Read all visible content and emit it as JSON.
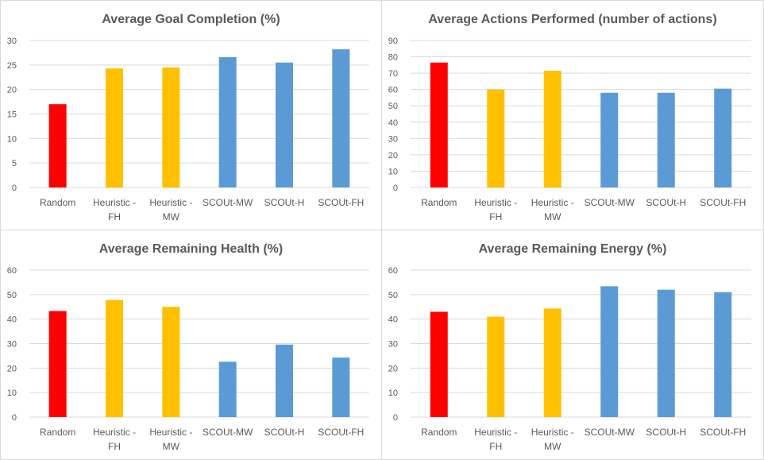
{
  "chart_data": [
    {
      "type": "bar",
      "title": "Average Goal Completion (%)",
      "categories": [
        [
          "Random"
        ],
        [
          "Heuristic -",
          "FH"
        ],
        [
          "Heuristic -",
          "MW"
        ],
        [
          "SCOUt-MW"
        ],
        [
          "SCOUt-H"
        ],
        [
          "SCOUt-FH"
        ]
      ],
      "values": [
        17,
        24.3,
        24.5,
        26.6,
        25.5,
        28.2
      ],
      "colors": [
        "#ff0000",
        "#ffc000",
        "#ffc000",
        "#5b9bd5",
        "#5b9bd5",
        "#5b9bd5"
      ],
      "ylim": [
        0,
        30
      ],
      "yticks": [
        0,
        5,
        10,
        15,
        20,
        25,
        30
      ],
      "grid": true,
      "legend": "none"
    },
    {
      "type": "bar",
      "title": "Average Actions Performed (number of actions)",
      "categories": [
        [
          "Random"
        ],
        [
          "Heuristic -",
          "FH"
        ],
        [
          "Heuristic -",
          "MW"
        ],
        [
          "SCOUt-MW"
        ],
        [
          "SCOUt-H"
        ],
        [
          "SCOUt-FH"
        ]
      ],
      "values": [
        76.5,
        60,
        71.5,
        58,
        58,
        60.5
      ],
      "colors": [
        "#ff0000",
        "#ffc000",
        "#ffc000",
        "#5b9bd5",
        "#5b9bd5",
        "#5b9bd5"
      ],
      "ylim": [
        0,
        90
      ],
      "yticks": [
        0,
        10,
        20,
        30,
        40,
        50,
        60,
        70,
        80,
        90
      ],
      "grid": true,
      "legend": "none"
    },
    {
      "type": "bar",
      "title": "Average Remaining Health (%)",
      "categories": [
        [
          "Random"
        ],
        [
          "Heuristic -",
          "FH"
        ],
        [
          "Heuristic -",
          "MW"
        ],
        [
          "SCOUt-MW"
        ],
        [
          "SCOUt-H"
        ],
        [
          "SCOUt-FH"
        ]
      ],
      "values": [
        43.3,
        47.8,
        45,
        22.6,
        29.6,
        24.3
      ],
      "colors": [
        "#ff0000",
        "#ffc000",
        "#ffc000",
        "#5b9bd5",
        "#5b9bd5",
        "#5b9bd5"
      ],
      "ylim": [
        0,
        60
      ],
      "yticks": [
        0,
        10,
        20,
        30,
        40,
        50,
        60
      ],
      "grid": true,
      "legend": "none"
    },
    {
      "type": "bar",
      "title": "Average Remaining Energy (%)",
      "categories": [
        [
          "Random"
        ],
        [
          "Heuristic -",
          "FH"
        ],
        [
          "Heuristic -",
          "MW"
        ],
        [
          "SCOUt-MW"
        ],
        [
          "SCOUt-H"
        ],
        [
          "SCOUt-FH"
        ]
      ],
      "values": [
        43,
        41,
        44.3,
        53.4,
        52,
        51
      ],
      "colors": [
        "#ff0000",
        "#ffc000",
        "#ffc000",
        "#5b9bd5",
        "#5b9bd5",
        "#5b9bd5"
      ],
      "ylim": [
        0,
        60
      ],
      "yticks": [
        0,
        10,
        20,
        30,
        40,
        50,
        60
      ],
      "grid": true,
      "legend": "none"
    }
  ]
}
